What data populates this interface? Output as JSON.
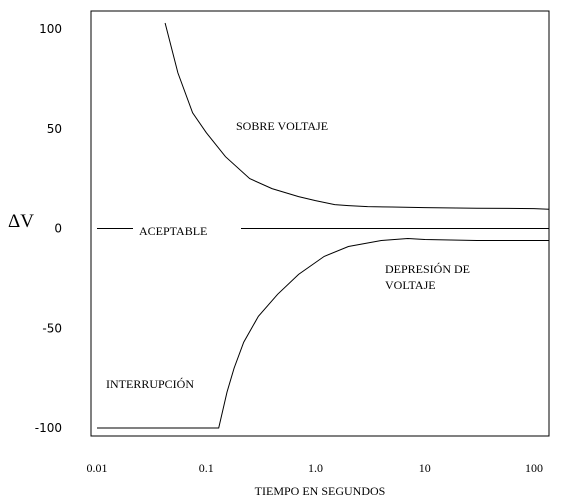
{
  "chart_data": {
    "type": "line",
    "ylabel": "ΔV",
    "xlabel": "TIEMPO EN SEGUNDOS",
    "x_scale": "log",
    "xlim": [
      0.01,
      200
    ],
    "ylim": [
      -100,
      100
    ],
    "x_ticks": [
      "0.01",
      "0.1",
      "1.0",
      "10",
      "100"
    ],
    "y_ticks": [
      "100",
      "50",
      "0",
      "-50",
      "-100"
    ],
    "x_tick_values": [
      0.01,
      0.1,
      1,
      10,
      100
    ],
    "y_tick_values": [
      100,
      50,
      0,
      -50,
      -100
    ],
    "grid": false,
    "annotations": {
      "over": "SOBRE VOLTAJE",
      "acceptable": "ACEPTABLE",
      "sag_line1": "DEPRESIÓN DE",
      "sag_line2": "VOLTAJE",
      "interruption": "INTERRUPCIÓN"
    },
    "series": [
      {
        "x": [
          0.042,
          0.055,
          0.075,
          0.1,
          0.15,
          0.25,
          0.4,
          0.7,
          1.0,
          1.5,
          2,
          3,
          5,
          10,
          30,
          100,
          200
        ],
        "y": [
          103,
          78,
          58,
          48,
          36,
          25,
          20,
          16,
          14,
          12,
          11.5,
          11,
          10.8,
          10.5,
          10.2,
          10,
          9.6
        ]
      },
      {
        "x": [
          0.01,
          0.08,
          0.13,
          0.155,
          0.18,
          0.22,
          0.3,
          0.45,
          0.7,
          1.2,
          2,
          4,
          7,
          10,
          30,
          100,
          200
        ],
        "y": [
          -100,
          -100,
          -100,
          -82,
          -70,
          -57,
          -44,
          -33,
          -23,
          -14,
          -9,
          -6,
          -5,
          -5.5,
          -6,
          -6,
          -6
        ]
      },
      {
        "x": [
          0.01,
          200
        ],
        "y": [
          0,
          0
        ]
      }
    ]
  }
}
